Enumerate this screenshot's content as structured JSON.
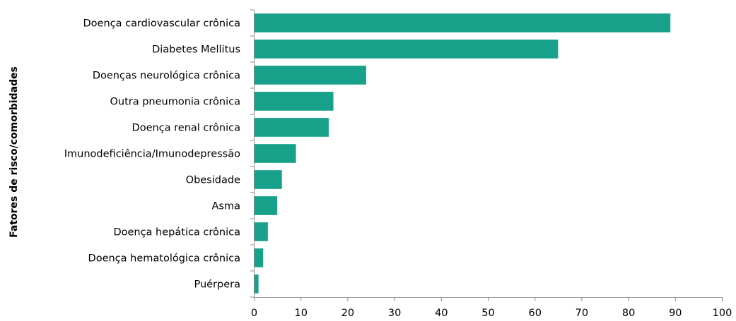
{
  "chart_data": {
    "type": "bar",
    "orientation": "horizontal",
    "categories": [
      "Doença cardiovascular crônica",
      "Diabetes Mellitus",
      "Doenças neurológica crônica",
      "Outra pneumonia crônica",
      "Doença renal crônica",
      "Imunodeficiência/Imunodepressão",
      "Obesidade",
      "Asma",
      "Doença hepática crônica",
      "Doença hematológica crônica",
      "Puérpera"
    ],
    "values": [
      89,
      65,
      24,
      17,
      16,
      9,
      6,
      5,
      3,
      2,
      1
    ],
    "ylabel": "Fatores de risco/comorbidades",
    "xlim": [
      0,
      100
    ],
    "xticks": [
      "0",
      "10",
      "20",
      "30",
      "40",
      "50",
      "60",
      "70",
      "80",
      "90",
      "100"
    ],
    "grid": false,
    "bar_color": "#17a08a"
  }
}
